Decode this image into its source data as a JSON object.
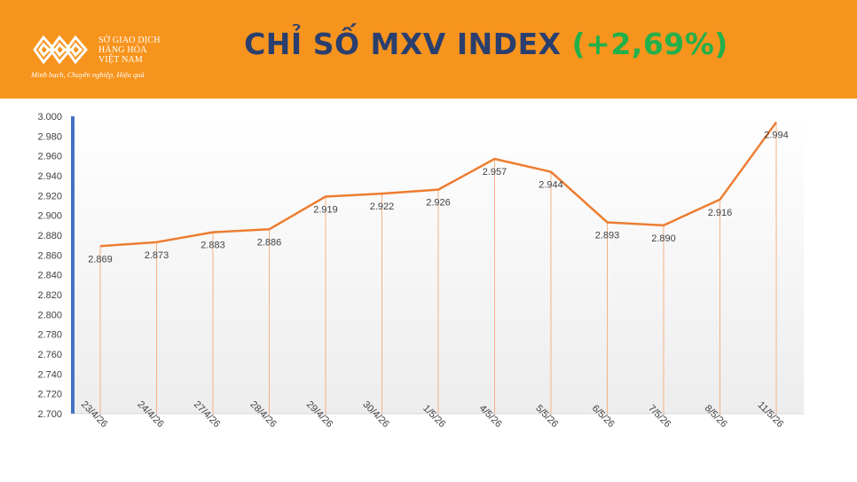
{
  "header": {
    "logo": {
      "line1": "SỞ GIAO DỊCH",
      "line2": "HÀNG HÓA",
      "line3": "VIỆT NAM",
      "slogan": "Minh bạch, Chuyên nghiệp, Hiệu quả"
    },
    "title_main": "CHỈ SỐ MXV INDEX",
    "title_change": "(+2,69%)"
  },
  "colors": {
    "header_bg": "#f7941d",
    "line": "#ed7d31",
    "axis_accent": "#4472c4",
    "title_main": "#2a3f6e",
    "title_change": "#22b04b"
  },
  "chart_data": {
    "type": "line",
    "categories": [
      "23/4/26",
      "24/4/26",
      "27/4/26",
      "28/4/26",
      "29/4/26",
      "30/4/26",
      "1/5/26",
      "4/5/26",
      "5/5/26",
      "6/5/26",
      "7/5/26",
      "8/5/26",
      "11/5/26"
    ],
    "values": [
      2869,
      2873,
      2883,
      2886,
      2919,
      2922,
      2926,
      2957,
      2944,
      2893,
      2890,
      2916,
      2994
    ],
    "value_labels": [
      "2.869",
      "2.873",
      "2.883",
      "2.886",
      "2.919",
      "2.922",
      "2.926",
      "2.957",
      "2.944",
      "2.893",
      "2.890",
      "2.916",
      "2.994"
    ],
    "ylim": [
      2700,
      3000
    ],
    "yticks": [
      2700,
      2720,
      2740,
      2760,
      2780,
      2800,
      2820,
      2840,
      2860,
      2880,
      2900,
      2920,
      2940,
      2960,
      2980,
      3000
    ],
    "ytick_labels": [
      "2.700",
      "2.720",
      "2.740",
      "2.760",
      "2.780",
      "2.800",
      "2.820",
      "2.840",
      "2.860",
      "2.880",
      "2.900",
      "2.920",
      "2.940",
      "2.960",
      "2.980",
      "3.000"
    ],
    "drop_lines": true,
    "grid": false
  }
}
